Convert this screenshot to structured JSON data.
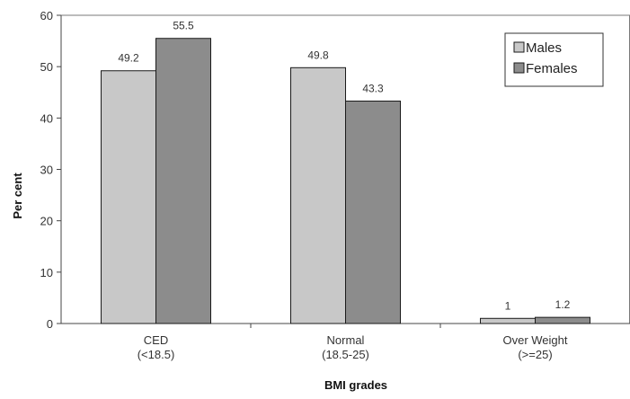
{
  "chart_data": {
    "type": "bar",
    "title": "",
    "xlabel": "BMI grades",
    "ylabel": "Per cent",
    "ylim": [
      0,
      60
    ],
    "yticks": [
      0,
      10,
      20,
      30,
      40,
      50,
      60
    ],
    "grid": false,
    "legend_position": "top-right",
    "categories": [
      [
        "CED",
        "(<18.5)"
      ],
      [
        "Normal",
        "(18.5-25)"
      ],
      [
        "Over Weight",
        "(>=25)"
      ]
    ],
    "series": [
      {
        "name": "Males",
        "values": [
          49.2,
          49.8,
          1
        ],
        "labels": [
          "49.2",
          "49.8",
          "1"
        ],
        "color": "#c8c8c8"
      },
      {
        "name": "Females",
        "values": [
          55.5,
          43.3,
          1.2
        ],
        "labels": [
          "55.5",
          "43.3",
          "1.2"
        ],
        "color": "#8c8c8c"
      }
    ]
  }
}
